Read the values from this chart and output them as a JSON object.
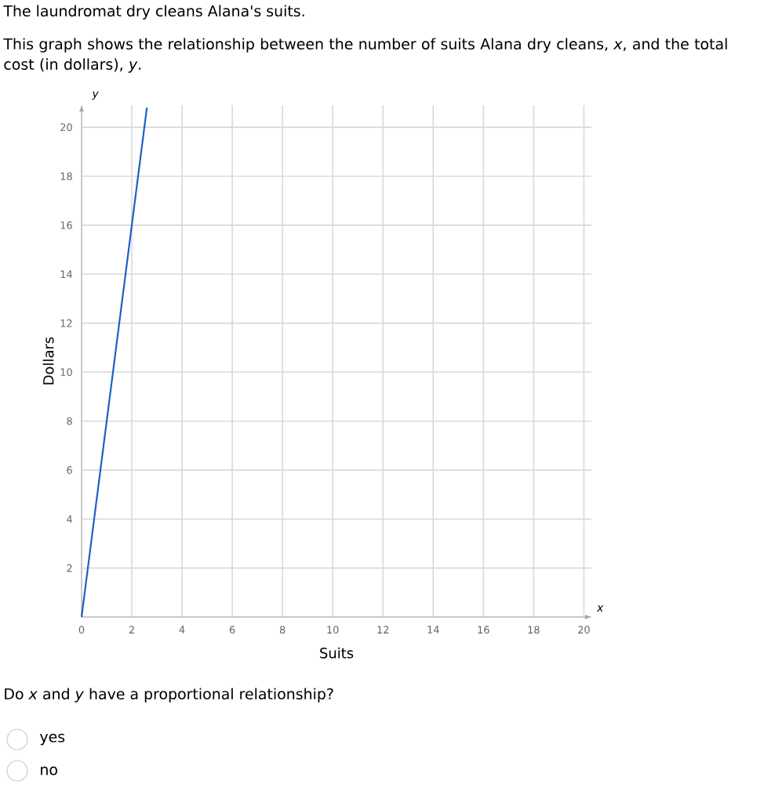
{
  "chart_data": {
    "type": "line",
    "title": "The laundromat dry cleans Alana's suits.",
    "subtitle": "This graph shows the relationship between the number of suits Alana dry cleans, *x*, and the total cost (in dollars), *y*.",
    "xlabel": "Suits",
    "ylabel": "Dollars",
    "annotations": [
      "Do *x* and *y* have a proportional relationship?",
      "yes",
      "no",
      "*x*",
      "*y*"
    ],
    "series": [
      {
        "color": "#1f5fc7",
        "x": [
          0,
          2.6
        ],
        "values": [
          0,
          20.8
        ]
      }
    ],
    "xlim": [
      0,
      20.3
    ],
    "ylim": [
      0,
      20.9
    ],
    "xticks": [
      0,
      2,
      4,
      6,
      8,
      10,
      12,
      14,
      16,
      18,
      20
    ],
    "yticks": [
      {
        "value": 0,
        "label": null
      },
      2,
      4,
      6,
      8,
      10,
      12,
      14,
      16,
      18,
      20
    ],
    "grid": true,
    "marker": "none",
    "line_style": "solid"
  }
}
